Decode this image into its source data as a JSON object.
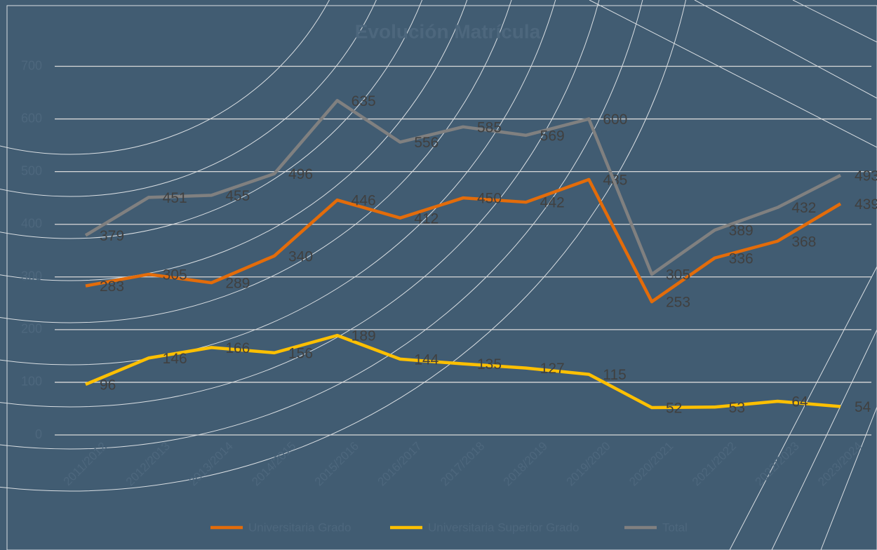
{
  "chart_data": {
    "type": "line",
    "title": "Evolución Matrícula",
    "categories": [
      "2011/2012",
      "2012/2013",
      "2013/2014",
      "2014/2015",
      "2015/2016",
      "2016/2017",
      "2017/2018",
      "2018/2019",
      "2019/2020",
      "2020/2021",
      "2021/2022",
      "2022/2023",
      "2023/2024"
    ],
    "series": [
      {
        "name": "Universitaria Grado",
        "color": "#e36c0a",
        "values": [
          283,
          305,
          289,
          340,
          446,
          412,
          450,
          442,
          485,
          253,
          336,
          368,
          439
        ]
      },
      {
        "name": "Universitaria Superior Grado",
        "color": "#ffc000",
        "values": [
          96,
          146,
          166,
          156,
          189,
          144,
          135,
          127,
          115,
          52,
          53,
          64,
          54
        ]
      },
      {
        "name": "Total",
        "color": "#808080",
        "values": [
          379,
          451,
          455,
          496,
          635,
          556,
          585,
          569,
          600,
          305,
          389,
          432,
          493
        ]
      }
    ],
    "ylim": [
      0,
      700
    ],
    "yticks": [
      0,
      100,
      200,
      300,
      400,
      500,
      600,
      700
    ],
    "grid": true
  }
}
